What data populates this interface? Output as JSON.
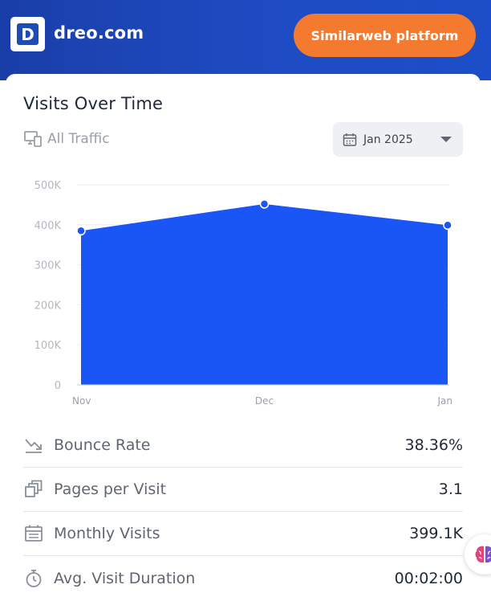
{
  "header": {
    "logo_letter": "D",
    "site_name": "dreo.com",
    "platform_button": "Similarweb platform"
  },
  "card": {
    "title": "Visits Over Time",
    "traffic_filter": "All Traffic",
    "date_select": "Jan 2025"
  },
  "chart_data": {
    "type": "area",
    "categories": [
      "Nov",
      "Dec",
      "Jan"
    ],
    "values": [
      385000,
      452000,
      399100
    ],
    "yticks": [
      "500K",
      "400K",
      "300K",
      "200K",
      "100K",
      "0"
    ],
    "ylim": [
      0,
      500000
    ],
    "grid": true,
    "color": "#1a56f5"
  },
  "metrics": [
    {
      "icon": "bounce-icon",
      "label": "Bounce Rate",
      "value": "38.36%"
    },
    {
      "icon": "pages-icon",
      "label": "Pages per Visit",
      "value": "3.1"
    },
    {
      "icon": "calendar-icon",
      "label": "Monthly Visits",
      "value": "399.1K"
    },
    {
      "icon": "stopwatch-icon",
      "label": "Avg. Visit Duration",
      "value": "00:02:00"
    }
  ],
  "colors": {
    "header": "#1d4bc0",
    "accent_button": "#f47a2f",
    "chart_fill": "#1a56f5"
  }
}
